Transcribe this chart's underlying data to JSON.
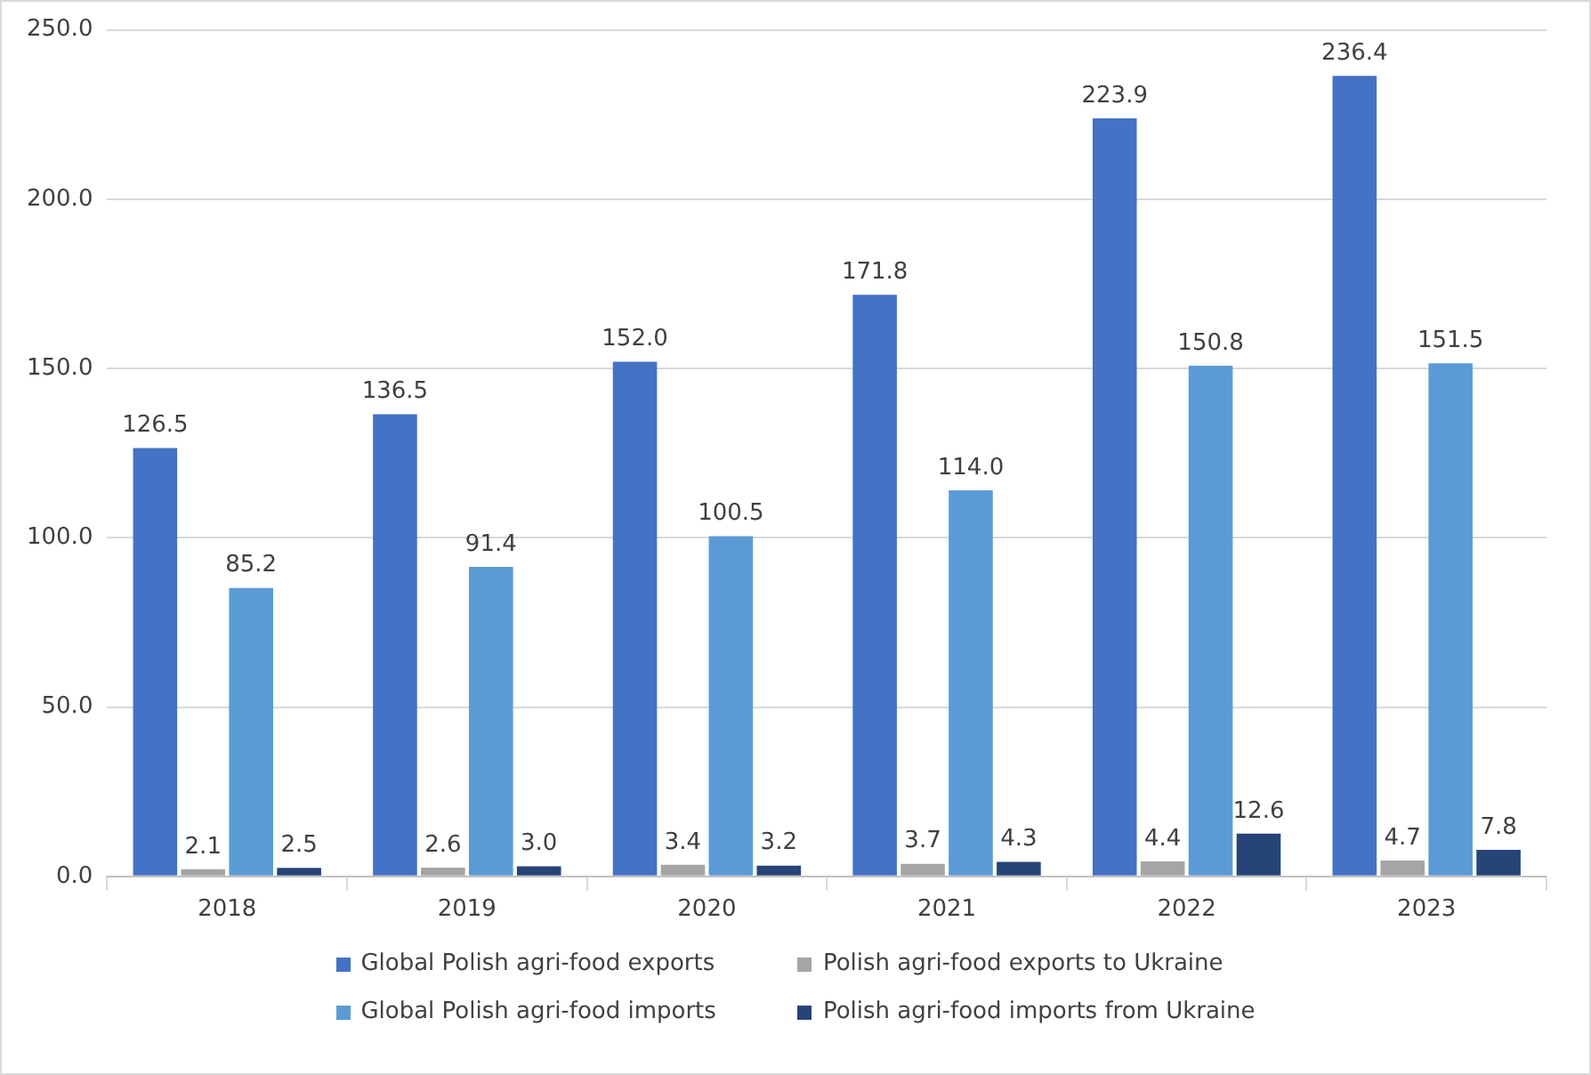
{
  "chart_data": {
    "type": "bar",
    "categories": [
      "2018",
      "2019",
      "2020",
      "2021",
      "2022",
      "2023"
    ],
    "series": [
      {
        "name": "Global Polish agri-food exports",
        "color": "#4472c4",
        "values": [
          126.5,
          136.5,
          152.0,
          171.8,
          223.9,
          236.4
        ],
        "value_labels": [
          "126.5",
          "136.5",
          "152.0",
          "171.8",
          "223.9",
          "236.4"
        ]
      },
      {
        "name": "Polish agri-food exports to Ukraine",
        "color": "#a5a5a5",
        "values": [
          2.1,
          2.6,
          3.4,
          3.7,
          4.4,
          4.7
        ],
        "value_labels": [
          "2.1",
          "2.6",
          "3.4",
          "3.7",
          "4.4",
          "4.7"
        ]
      },
      {
        "name": "Global Polish agri-food imports",
        "color": "#5b9bd5",
        "values": [
          85.2,
          91.4,
          100.5,
          114.0,
          150.8,
          151.5
        ],
        "value_labels": [
          "85.2",
          "91.4",
          "100.5",
          "114.0",
          "150.8",
          "151.5"
        ]
      },
      {
        "name": "Polish agri-food imports from Ukraine",
        "color": "#264478",
        "values": [
          2.5,
          3.0,
          3.2,
          4.3,
          12.6,
          7.8
        ],
        "value_labels": [
          "2.5",
          "3.0",
          "3.2",
          "4.3",
          "12.6",
          "7.8"
        ]
      }
    ],
    "ylim": [
      0,
      250
    ],
    "yticks": [
      {
        "value": 0,
        "label": "0.0"
      },
      {
        "value": 50,
        "label": "50.0"
      },
      {
        "value": 100,
        "label": "100.0"
      },
      {
        "value": 150,
        "label": "150.0"
      },
      {
        "value": 200,
        "label": "200.0"
      },
      {
        "value": 250,
        "label": "250.0"
      }
    ],
    "grid": "y",
    "legend": "bottom"
  }
}
